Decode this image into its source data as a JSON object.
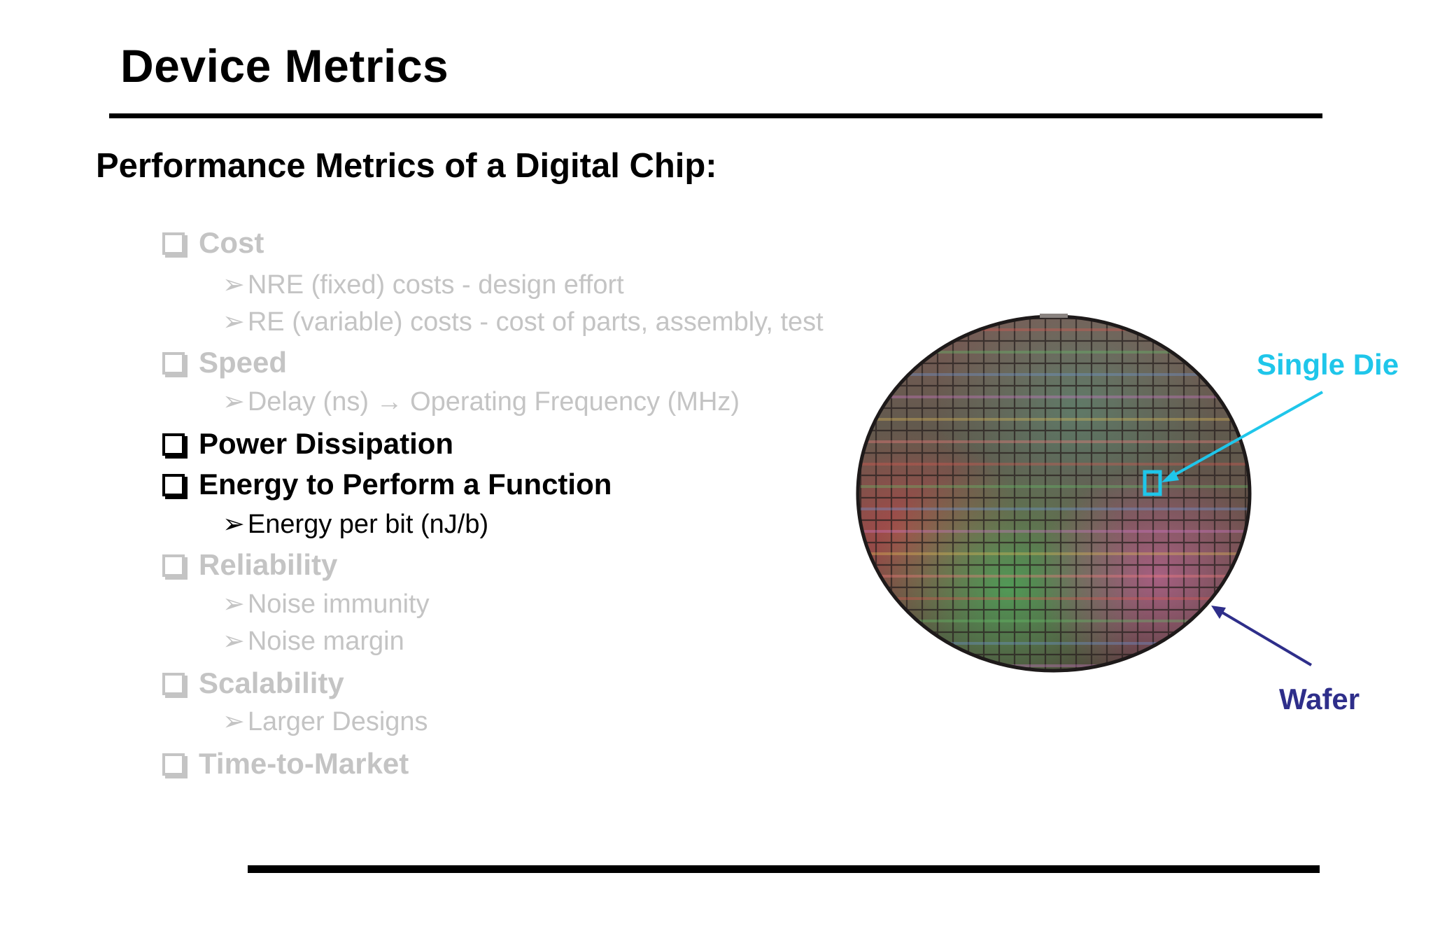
{
  "title": "Device Metrics",
  "subtitle": "Performance Metrics of a Digital Chip:",
  "outline": [
    {
      "level": 1,
      "text": "Cost",
      "state": "muted"
    },
    {
      "level": 2,
      "text": "NRE (fixed) costs - design effort",
      "state": "muted"
    },
    {
      "level": 2,
      "text": "RE (variable) costs - cost of parts, assembly, test",
      "state": "muted"
    },
    {
      "level": 1,
      "text": "Speed",
      "state": "muted"
    },
    {
      "level": 2,
      "text": "Delay (ns) → Operating Frequency (MHz)",
      "state": "muted"
    },
    {
      "level": 1,
      "text": "Power Dissipation",
      "state": "active"
    },
    {
      "level": 1,
      "text": "Energy to Perform a Function",
      "state": "active"
    },
    {
      "level": 2,
      "text": "Energy per bit (nJ/b)",
      "state": "active"
    },
    {
      "level": 1,
      "text": "Reliability",
      "state": "muted"
    },
    {
      "level": 2,
      "text": "Noise immunity",
      "state": "muted"
    },
    {
      "level": 2,
      "text": "Noise margin",
      "state": "muted"
    },
    {
      "level": 1,
      "text": "Scalability",
      "state": "muted"
    },
    {
      "level": 2,
      "text": "Larger Designs",
      "state": "muted"
    },
    {
      "level": 1,
      "text": "Time-to-Market",
      "state": "muted"
    }
  ],
  "figure": {
    "single_die_label": "Single Die",
    "wafer_label": "Wafer"
  },
  "colors": {
    "muted_text": "#c4c4c4",
    "active_text": "#000000",
    "single_die": "#1fc6ea",
    "wafer": "#2e2e8a"
  },
  "icons": {
    "level1_bullet": "checkbox-square-icon",
    "level2_bullet": "arrowhead-icon"
  }
}
